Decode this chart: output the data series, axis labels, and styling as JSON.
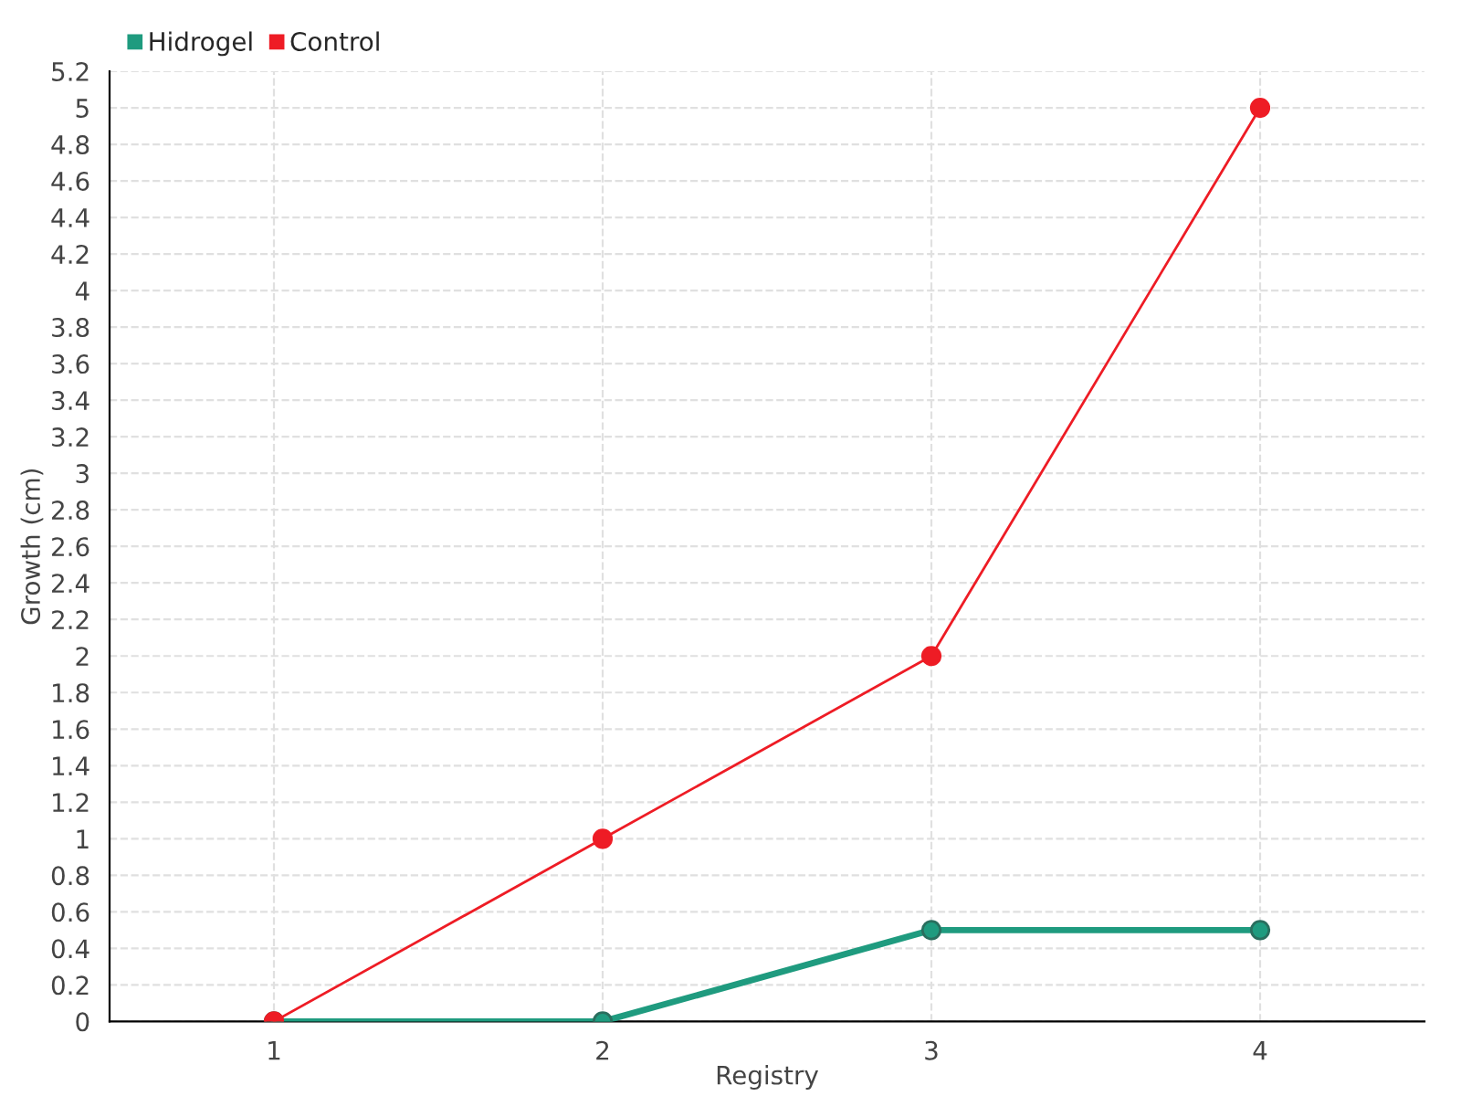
{
  "chart_data": {
    "type": "line",
    "xlabel": "Registry",
    "ylabel": "Growth (cm)",
    "x": [
      1,
      2,
      3,
      4
    ],
    "series": [
      {
        "name": "Hidrogel",
        "color": "#1f9b7f",
        "values": [
          0,
          0,
          0.5,
          0.5
        ]
      },
      {
        "name": "Control",
        "color": "#ee1c25",
        "values": [
          0,
          1,
          2,
          5
        ]
      }
    ],
    "xlim": [
      0.5,
      4.5
    ],
    "xticks": [
      1,
      2,
      3,
      4
    ],
    "ylim": [
      0,
      5.2
    ],
    "yticks": [
      0,
      0.2,
      0.4,
      0.6,
      0.8,
      1,
      1.2,
      1.4,
      1.6,
      1.8,
      2,
      2.2,
      2.4,
      2.6,
      2.8,
      3,
      3.2,
      3.4,
      3.6,
      3.8,
      4,
      4.2,
      4.4,
      4.6,
      4.8,
      5,
      5.2
    ],
    "grid": true,
    "legend": "top left",
    "marker": "circle",
    "line_style": "solid"
  }
}
